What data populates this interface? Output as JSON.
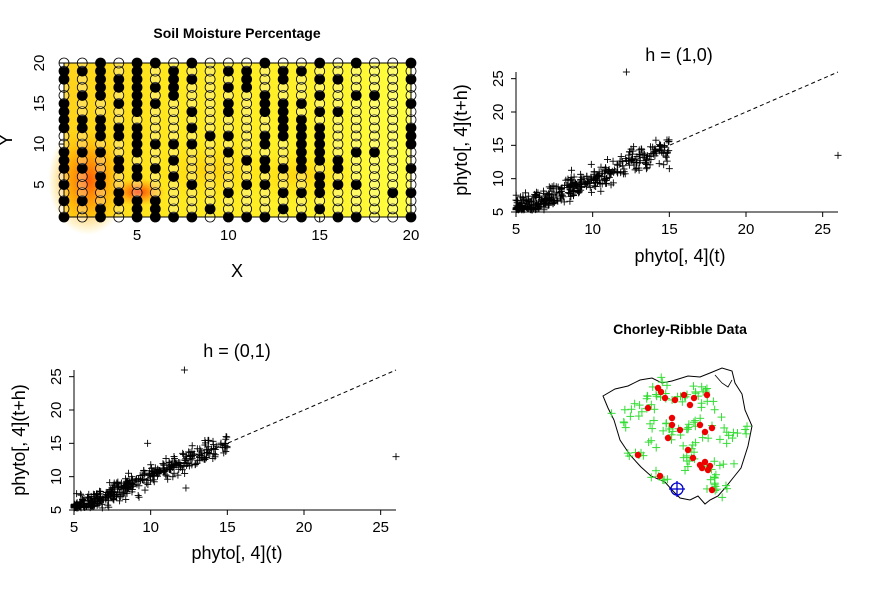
{
  "chart_data": [
    {
      "type": "heatmap",
      "title": "Soil Moisture Percentage",
      "xlabel": "X",
      "ylabel": "Y",
      "xlim": [
        1,
        20
      ],
      "ylim": [
        1,
        20
      ],
      "x_ticks": [
        "5",
        "10",
        "15",
        "20"
      ],
      "y_ticks": [
        "5",
        "10",
        "15",
        "20"
      ],
      "grid": {
        "columns": 20,
        "rows": 20
      },
      "column_dark_fraction": [
        0.65,
        0.35,
        0.5,
        0.6,
        0.75,
        0.5,
        0.3,
        0.3,
        0.2,
        0.3,
        0.2,
        0.6,
        0.5,
        0.55,
        0.5,
        0.3,
        0.2,
        0.1,
        0.1,
        0.4
      ],
      "colors": {
        "low": "#ffff33",
        "mid": "#ffa500",
        "high": "#ff3300",
        "dark_point": "#000000",
        "light_point": "#ffffff"
      }
    },
    {
      "type": "scatter",
      "title": "h = (1,0)",
      "xlabel": "phyto[, 4](t)",
      "ylabel": "phyto[, 4](t+h)",
      "xlim": [
        5,
        26
      ],
      "ylim": [
        5,
        26
      ],
      "x_ticks": [
        "5",
        "10",
        "15",
        "20",
        "25"
      ],
      "y_ticks": [
        "5",
        "10",
        "15",
        "20",
        "25"
      ],
      "reference_line": "y = x (dashed)",
      "cloud": {
        "n": 420,
        "x_min": 5,
        "x_max": 15,
        "spread": 0.9
      },
      "outliers": [
        {
          "x": 12.2,
          "y": 26
        },
        {
          "x": 26,
          "y": 13.5
        },
        {
          "x": 15,
          "y": 11.5
        }
      ]
    },
    {
      "type": "scatter",
      "title": "h = (0,1)",
      "xlabel": "phyto[, 4](t)",
      "ylabel": "phyto[, 4](t+h)",
      "xlim": [
        5,
        26
      ],
      "ylim": [
        5,
        26
      ],
      "x_ticks": [
        "5",
        "10",
        "15",
        "20",
        "25"
      ],
      "y_ticks": [
        "5",
        "10",
        "15",
        "20",
        "25"
      ],
      "reference_line": "y = x (dashed)",
      "cloud": {
        "n": 420,
        "x_min": 5,
        "x_max": 15,
        "spread": 0.8
      },
      "outliers": [
        {
          "x": 12.2,
          "y": 26
        },
        {
          "x": 26,
          "y": 13
        },
        {
          "x": 9.8,
          "y": 15
        },
        {
          "x": 12.3,
          "y": 8.3
        }
      ]
    },
    {
      "type": "scatter",
      "title": "Chorley-Ribble Data",
      "series": [
        {
          "name": "",
          "marker": "plus",
          "color": "#33dd33"
        },
        {
          "name": "",
          "marker": "dot",
          "color": "#ee0000"
        },
        {
          "name": "",
          "marker": "circle-plus",
          "color": "#0000cc"
        }
      ]
    }
  ]
}
